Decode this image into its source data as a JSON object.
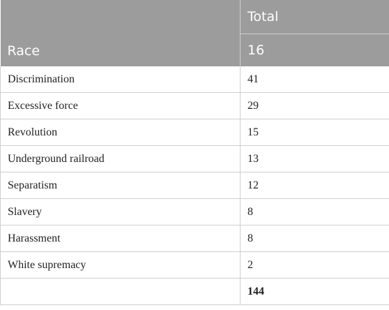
{
  "table": {
    "header": {
      "col1_label": "Race",
      "col2_label": "Total",
      "col2_count": "16"
    },
    "rows": [
      {
        "label": "Discrimination",
        "value": "41"
      },
      {
        "label": "Excessive force",
        "value": "29"
      },
      {
        "label": "Revolution",
        "value": "15"
      },
      {
        "label": "Underground railroad",
        "value": "13"
      },
      {
        "label": "Separatism",
        "value": "12"
      },
      {
        "label": "Slavery",
        "value": "8"
      },
      {
        "label": "Harassment",
        "value": "8"
      },
      {
        "label": "White supremacy",
        "value": "2"
      }
    ],
    "total_row": {
      "label": "",
      "value": "144"
    }
  },
  "colors": {
    "header_bg": "#9c9c9c",
    "header_text": "#ffffff",
    "grid": "#cfcfcf",
    "body_text": "#222222"
  }
}
